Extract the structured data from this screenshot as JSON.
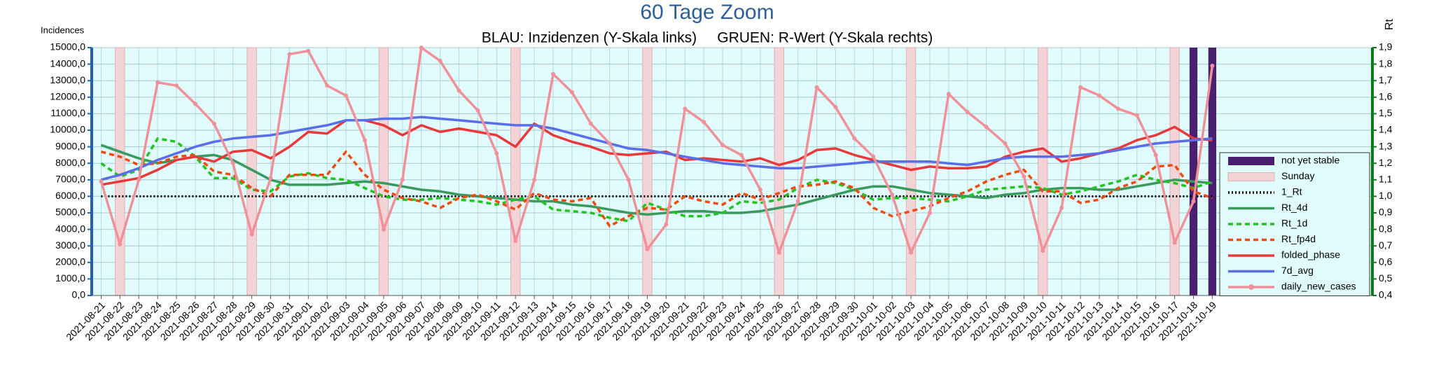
{
  "chart_data": {
    "type": "line",
    "title": "60 Tage Zoom",
    "subtitle": "BLAU: Inzidenzen (Y-Skala links)     GRUEN: R-Wert (Y-Skala rechts)",
    "y_label": "Incidences",
    "y2_label": "Rt",
    "grid": true,
    "legend": "right",
    "categories": [
      "2021-08-21",
      "2021-08-22",
      "2021-08-23",
      "2021-08-24",
      "2021-08-25",
      "2021-08-26",
      "2021-08-27",
      "2021-08-28",
      "2021-08-29",
      "2021-08-30",
      "2021-08-31",
      "2021-09-01",
      "2021-09-02",
      "2021-09-03",
      "2021-09-04",
      "2021-09-05",
      "2021-09-06",
      "2021-09-07",
      "2021-09-08",
      "2021-09-09",
      "2021-09-10",
      "2021-09-11",
      "2021-09-12",
      "2021-09-13",
      "2021-09-14",
      "2021-09-15",
      "2021-09-16",
      "2021-09-17",
      "2021-09-18",
      "2021-09-19",
      "2021-09-20",
      "2021-09-21",
      "2021-09-22",
      "2021-09-23",
      "2021-09-24",
      "2021-09-25",
      "2021-09-26",
      "2021-09-27",
      "2021-09-28",
      "2021-09-29",
      "2021-09-30",
      "2021-10-01",
      "2021-10-02",
      "2021-10-03",
      "2021-10-04",
      "2021-10-05",
      "2021-10-06",
      "2021-10-07",
      "2021-10-08",
      "2021-10-09",
      "2021-10-10",
      "2021-10-11",
      "2021-10-12",
      "2021-10-13",
      "2021-10-14",
      "2021-10-15",
      "2021-10-16",
      "2021-10-17",
      "2021-10-18",
      "2021-10-19"
    ],
    "ylim": [
      0,
      15000
    ],
    "yticks": [
      {
        "value": 0,
        "label": "0,0"
      },
      {
        "value": 1000,
        "label": "1000,0"
      },
      {
        "value": 2000,
        "label": "2000,0"
      },
      {
        "value": 3000,
        "label": "3000,0"
      },
      {
        "value": 4000,
        "label": "4000,0"
      },
      {
        "value": 5000,
        "label": "5000,0"
      },
      {
        "value": 6000,
        "label": "6000,0"
      },
      {
        "value": 7000,
        "label": "7000,0"
      },
      {
        "value": 8000,
        "label": "8000,0"
      },
      {
        "value": 9000,
        "label": "9000,0"
      },
      {
        "value": 10000,
        "label": "10000,0"
      },
      {
        "value": 11000,
        "label": "11000,0"
      },
      {
        "value": 12000,
        "label": "12000,0"
      },
      {
        "value": 13000,
        "label": "13000,0"
      },
      {
        "value": 14000,
        "label": "14000,0"
      },
      {
        "value": 15000,
        "label": "15000,0"
      }
    ],
    "y2lim": [
      0.4,
      1.9
    ],
    "y2ticks": [
      {
        "value": 0.4,
        "label": "0,4"
      },
      {
        "value": 0.5,
        "label": "0,5"
      },
      {
        "value": 0.6,
        "label": "0,6"
      },
      {
        "value": 0.7,
        "label": "0,7"
      },
      {
        "value": 0.8,
        "label": "0,8"
      },
      {
        "value": 0.9,
        "label": "0,9"
      },
      {
        "value": 1.0,
        "label": "1,0"
      },
      {
        "value": 1.1,
        "label": "1,1"
      },
      {
        "value": 1.2,
        "label": "1,2"
      },
      {
        "value": 1.3,
        "label": "1,3"
      },
      {
        "value": 1.4,
        "label": "1,4"
      },
      {
        "value": 1.5,
        "label": "1,5"
      },
      {
        "value": 1.6,
        "label": "1,6"
      },
      {
        "value": 1.7,
        "label": "1,7"
      },
      {
        "value": 1.8,
        "label": "1,8"
      },
      {
        "value": 1.9,
        "label": "1,9"
      }
    ],
    "series": [
      {
        "name": "not yet stable",
        "type": "bar",
        "color": "#4b1f6f",
        "values": [
          null,
          null,
          null,
          null,
          null,
          null,
          null,
          null,
          null,
          null,
          null,
          null,
          null,
          null,
          null,
          null,
          null,
          null,
          null,
          null,
          null,
          null,
          null,
          null,
          null,
          null,
          null,
          null,
          null,
          null,
          null,
          null,
          null,
          null,
          null,
          null,
          null,
          null,
          null,
          null,
          null,
          null,
          null,
          null,
          null,
          null,
          null,
          null,
          null,
          null,
          null,
          null,
          null,
          null,
          null,
          null,
          null,
          15000,
          15000,
          15000
        ]
      },
      {
        "name": "Sunday",
        "type": "bar",
        "color": "#f2d3d6",
        "values": [
          null,
          15000,
          null,
          null,
          null,
          null,
          null,
          null,
          15000,
          null,
          null,
          null,
          null,
          null,
          null,
          15000,
          null,
          null,
          null,
          null,
          null,
          null,
          15000,
          null,
          null,
          null,
          null,
          null,
          null,
          15000,
          null,
          null,
          null,
          null,
          null,
          null,
          15000,
          null,
          null,
          null,
          null,
          null,
          null,
          15000,
          null,
          null,
          null,
          null,
          null,
          null,
          15000,
          null,
          null,
          null,
          null,
          null,
          null,
          15000,
          null,
          null
        ]
      },
      {
        "name": "1_Rt",
        "type": "line",
        "axis": "y2",
        "dash": "dotted",
        "color": "#000000",
        "values": [
          1,
          1,
          1,
          1,
          1,
          1,
          1,
          1,
          1,
          1,
          1,
          1,
          1,
          1,
          1,
          1,
          1,
          1,
          1,
          1,
          1,
          1,
          1,
          1,
          1,
          1,
          1,
          1,
          1,
          1,
          1,
          1,
          1,
          1,
          1,
          1,
          1,
          1,
          1,
          1,
          1,
          1,
          1,
          1,
          1,
          1,
          1,
          1,
          1,
          1,
          1,
          1,
          1,
          1,
          1,
          1,
          1,
          1,
          1,
          1
        ]
      },
      {
        "name": "Rt_4d",
        "type": "line",
        "axis": "y2",
        "color": "#3a9a5e",
        "values": [
          1.31,
          1.27,
          1.23,
          1.2,
          1.22,
          1.24,
          1.25,
          1.22,
          1.16,
          1.1,
          1.07,
          1.07,
          1.07,
          1.08,
          1.09,
          1.08,
          1.06,
          1.04,
          1.03,
          1.01,
          1.0,
          0.99,
          0.98,
          0.97,
          0.97,
          0.95,
          0.94,
          0.92,
          0.9,
          0.89,
          0.9,
          0.91,
          0.91,
          0.9,
          0.9,
          0.91,
          0.93,
          0.95,
          0.98,
          1.01,
          1.04,
          1.06,
          1.06,
          1.04,
          1.02,
          1.01,
          1.0,
          0.99,
          1.01,
          1.02,
          1.04,
          1.05,
          1.05,
          1.04,
          1.04,
          1.06,
          1.08,
          1.1,
          1.09,
          1.08
        ]
      },
      {
        "name": "Rt_1d",
        "type": "line",
        "axis": "y2",
        "dash": "dashed",
        "color": "#22c422",
        "values": [
          1.2,
          1.12,
          1.16,
          1.35,
          1.33,
          1.24,
          1.11,
          1.11,
          1.04,
          1.03,
          1.12,
          1.14,
          1.11,
          1.1,
          1.05,
          1.0,
          0.98,
          0.98,
          0.99,
          0.98,
          0.97,
          0.95,
          0.98,
          1.0,
          0.92,
          0.91,
          0.9,
          0.87,
          0.85,
          0.96,
          0.92,
          0.88,
          0.88,
          0.9,
          0.97,
          0.96,
          0.98,
          1.05,
          1.1,
          1.08,
          1.04,
          0.98,
          0.99,
          0.99,
          0.98,
          0.97,
          1.0,
          1.04,
          1.05,
          1.06,
          1.05,
          1.01,
          1.03,
          1.06,
          1.09,
          1.13,
          1.1,
          1.08,
          1.05,
          1.09
        ]
      },
      {
        "name": "Rt_fp4d",
        "type": "line",
        "axis": "y2",
        "dash": "dashed",
        "color": "#f04a10",
        "values": [
          1.27,
          1.24,
          1.19,
          1.2,
          1.24,
          1.25,
          1.15,
          1.13,
          1.05,
          1.0,
          1.13,
          1.13,
          1.13,
          1.27,
          1.13,
          1.04,
          0.99,
          0.97,
          0.93,
          0.99,
          1.01,
          0.97,
          0.92,
          1.02,
          0.98,
          0.97,
          0.99,
          0.82,
          0.88,
          0.93,
          0.92,
          1.0,
          0.97,
          0.95,
          1.02,
          0.98,
          1.02,
          1.06,
          1.07,
          1.09,
          1.05,
          0.93,
          0.88,
          0.91,
          0.94,
          0.99,
          1.03,
          1.09,
          1.13,
          1.16,
          1.03,
          1.03,
          0.96,
          0.98,
          1.05,
          1.09,
          1.18,
          1.19,
          1.03,
          0.99
        ]
      },
      {
        "name": "folded_phase",
        "type": "line",
        "color": "#e8383a",
        "values": [
          6700,
          6900,
          7100,
          7600,
          8200,
          8400,
          8100,
          8700,
          8800,
          8300,
          9000,
          9900,
          9800,
          10600,
          10600,
          10300,
          9700,
          10300,
          9900,
          10100,
          9900,
          9700,
          9000,
          10400,
          9700,
          9300,
          9000,
          8600,
          8500,
          8600,
          8700,
          8200,
          8300,
          8200,
          8100,
          8300,
          7900,
          8200,
          8800,
          8900,
          8500,
          8200,
          7900,
          7600,
          7800,
          7700,
          7700,
          7800,
          8400,
          8700,
          8900,
          8100,
          8300,
          8600,
          8900,
          9400,
          9700,
          10200,
          9500,
          9400
        ]
      },
      {
        "name": "7d_avg",
        "type": "line",
        "color": "#5a6ee8",
        "values": [
          7000,
          7300,
          7700,
          8200,
          8600,
          9000,
          9300,
          9500,
          9600,
          9700,
          9900,
          10100,
          10300,
          10600,
          10600,
          10700,
          10700,
          10800,
          10700,
          10600,
          10500,
          10400,
          10300,
          10300,
          10100,
          9800,
          9500,
          9200,
          8900,
          8800,
          8600,
          8400,
          8200,
          8000,
          7900,
          7800,
          7700,
          7700,
          7800,
          7900,
          8000,
          8100,
          8100,
          8100,
          8100,
          8000,
          7900,
          8100,
          8300,
          8400,
          8400,
          8400,
          8500,
          8600,
          8800,
          9000,
          9200,
          9300,
          9400,
          9500
        ]
      },
      {
        "name": "daily_new_cases",
        "type": "line",
        "marker": "circle",
        "color": "#f0919a",
        "values": [
          6900,
          3100,
          7000,
          12900,
          12700,
          11600,
          10400,
          8000,
          3700,
          7100,
          14600,
          14800,
          12700,
          12100,
          9400,
          4000,
          7000,
          15000,
          14200,
          12400,
          11200,
          8600,
          3300,
          7000,
          13400,
          12300,
          10400,
          9200,
          7000,
          2800,
          4300,
          11300,
          10500,
          9100,
          8500,
          6400,
          2600,
          5700,
          12600,
          11400,
          9500,
          8400,
          6100,
          2600,
          5000,
          12200,
          11100,
          10200,
          9200,
          7200,
          2700,
          5300,
          12600,
          12100,
          11300,
          10900,
          8500,
          3200,
          5700,
          13900
        ]
      }
    ]
  }
}
